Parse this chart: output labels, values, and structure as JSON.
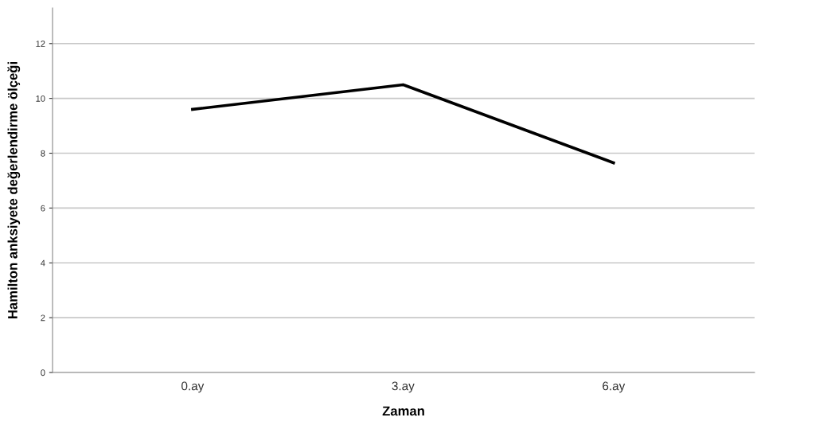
{
  "chart_data": {
    "type": "line",
    "xlabel": "Zaman",
    "ylabel": "Hamilton anksiyete değerlendirme ölçeği",
    "categories": [
      "0.ay",
      "3.ay",
      "6.ay"
    ],
    "series": [
      {
        "color": "#000000",
        "values": [
          9.6,
          10.5,
          7.65
        ]
      }
    ],
    "ylim": [
      0,
      13.3
    ],
    "yticks": [
      0,
      2,
      4,
      6,
      8,
      10,
      12
    ],
    "grid": "y",
    "marker": "none",
    "line_style": "solid"
  }
}
